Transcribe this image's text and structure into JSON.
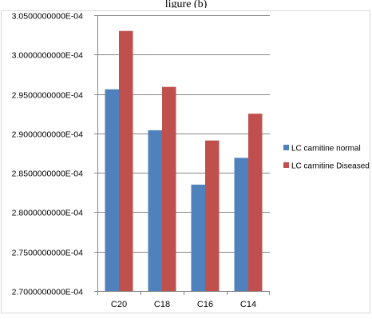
{
  "chart_data": {
    "type": "bar",
    "title": "ligure (b)",
    "categories": [
      "C20",
      "C18",
      "C16",
      "C14"
    ],
    "series": [
      {
        "name": "LC carnitine normal",
        "color": "#4F81BD",
        "values": [
          0.0002956,
          0.0002904,
          0.0002835,
          0.0002869
        ]
      },
      {
        "name": "LC carnitine Diseased",
        "color": "#C0504D",
        "values": [
          0.000303,
          0.0002959,
          0.0002891,
          0.0002925
        ]
      }
    ],
    "ylim": [
      0.00027,
      0.000305
    ],
    "yticks": [
      {
        "value": 0.000305,
        "label": "3.0500000000E-04"
      },
      {
        "value": 0.0003,
        "label": "3.0000000000E-04"
      },
      {
        "value": 0.000295,
        "label": "2.9500000000E-04"
      },
      {
        "value": 0.00029,
        "label": "2.9000000000E-04"
      },
      {
        "value": 0.000285,
        "label": "2.8500000000E-04"
      },
      {
        "value": 0.00028,
        "label": "2.8000000000E-04"
      },
      {
        "value": 0.000275,
        "label": "2.7500000000E-04"
      },
      {
        "value": 0.00027,
        "label": "2.7000000000E-04"
      }
    ],
    "grid": true,
    "legend_position": "right",
    "xlabel": "",
    "ylabel": ""
  }
}
